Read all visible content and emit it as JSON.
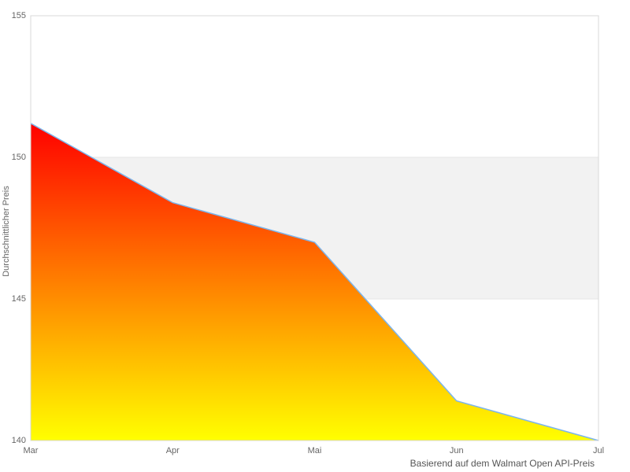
{
  "chart_data": {
    "type": "area",
    "categories": [
      "Mar",
      "Apr",
      "Mai",
      "Jun",
      "Jul"
    ],
    "values": [
      151.2,
      148.4,
      147.0,
      141.4,
      140.0
    ],
    "title": "",
    "xlabel": "",
    "ylabel": "Durchschnittlicher Preis",
    "caption": "Basierend auf dem Walmart Open API-Preis",
    "ylim": [
      140,
      155
    ],
    "yticks": [
      140,
      145,
      150,
      155
    ],
    "alternate_band": [
      145,
      150
    ],
    "grid": "horizontal",
    "legend_position": "none",
    "colors": {
      "gradient_top": "#ff0000",
      "gradient_bottom": "#ffff00",
      "line": "#7cb5ec",
      "band": "#f2f2f2",
      "gridline": "#e6e6e6",
      "border": "#d8d8d8",
      "tick_label": "#666666",
      "caption_text": "#555555"
    }
  }
}
